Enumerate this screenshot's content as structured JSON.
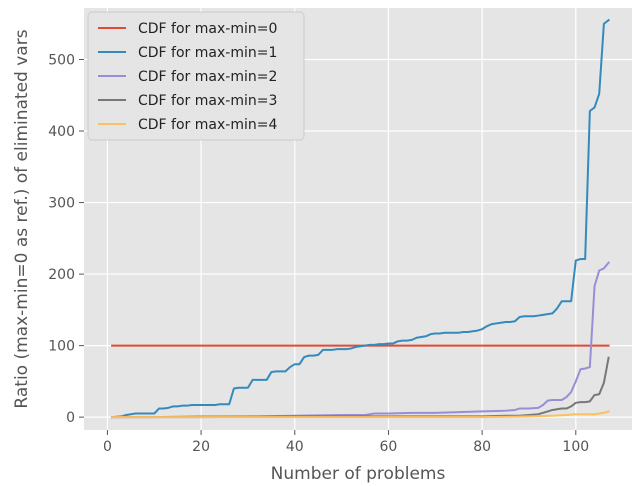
{
  "chart_data": {
    "type": "line",
    "xlabel": "Number of problems",
    "ylabel": "Ratio (max-min=0 as ref.) of eliminated vars",
    "xlim": [
      -5,
      112
    ],
    "ylim": [
      -18,
      572
    ],
    "xticks": [
      0,
      20,
      40,
      60,
      80,
      100
    ],
    "yticks": [
      0,
      100,
      200,
      300,
      400,
      500
    ],
    "grid": true,
    "legend_position": "upper-left",
    "series": [
      {
        "name": "CDF for max-min=0",
        "color": "#e24a33",
        "x": [
          1,
          107
        ],
        "y": [
          100,
          100
        ]
      },
      {
        "name": "CDF for max-min=1",
        "color": "#348abd",
        "x": [
          1,
          3,
          4,
          5,
          6,
          7,
          8,
          9,
          10,
          11,
          12,
          13,
          14,
          15,
          16,
          17,
          18,
          19,
          20,
          21,
          22,
          23,
          24,
          25,
          26,
          27,
          28,
          29,
          30,
          31,
          32,
          33,
          34,
          35,
          36,
          37,
          38,
          39,
          40,
          41,
          42,
          43,
          44,
          45,
          46,
          47,
          48,
          49,
          50,
          51,
          52,
          53,
          54,
          55,
          56,
          57,
          58,
          59,
          60,
          61,
          62,
          63,
          64,
          65,
          66,
          67,
          68,
          69,
          70,
          71,
          72,
          73,
          74,
          75,
          76,
          77,
          78,
          79,
          80,
          81,
          82,
          83,
          84,
          85,
          86,
          87,
          88,
          89,
          90,
          91,
          92,
          93,
          94,
          95,
          96,
          97,
          98,
          99,
          100,
          101,
          102,
          103,
          104,
          105,
          106,
          107
        ],
        "y": [
          0,
          1,
          3,
          4,
          5,
          5,
          5,
          5,
          5,
          12,
          12,
          13,
          15,
          15,
          16,
          16,
          17,
          17,
          17,
          17,
          17,
          17,
          18,
          18,
          18,
          40,
          41,
          41,
          41,
          52,
          52,
          52,
          52,
          63,
          64,
          64,
          64,
          70,
          74,
          74,
          84,
          86,
          86,
          87,
          94,
          94,
          94,
          95,
          95,
          95,
          96,
          98,
          99,
          100,
          101,
          101,
          102,
          102,
          103,
          103,
          106,
          107,
          107,
          108,
          111,
          112,
          113,
          116,
          117,
          117,
          118,
          118,
          118,
          118,
          119,
          119,
          120,
          121,
          123,
          127,
          130,
          131,
          132,
          133,
          133,
          134,
          140,
          141,
          141,
          141,
          142,
          143,
          144,
          145,
          152,
          162,
          162,
          162,
          219,
          221,
          221,
          428,
          433,
          452,
          550,
          555
        ]
      },
      {
        "name": "CDF for max-min=2",
        "color": "#988ed5",
        "x": [
          1,
          10,
          20,
          30,
          40,
          50,
          55,
          57,
          60,
          65,
          70,
          75,
          80,
          85,
          87,
          88,
          90,
          92,
          93,
          94,
          95,
          96,
          97,
          98,
          99,
          100,
          101,
          102,
          103,
          104,
          105,
          106,
          107
        ],
        "y": [
          0,
          0,
          1,
          1,
          2,
          3,
          3,
          5,
          5,
          6,
          6,
          7,
          8,
          9,
          10,
          12,
          12,
          13,
          17,
          23,
          24,
          24,
          24,
          28,
          35,
          50,
          67,
          68,
          70,
          183,
          205,
          208,
          216
        ]
      },
      {
        "name": "CDF for max-min=3",
        "color": "#777777",
        "x": [
          1,
          20,
          40,
          60,
          80,
          85,
          88,
          90,
          92,
          93,
          94,
          95,
          96,
          97,
          98,
          99,
          100,
          101,
          102,
          103,
          104,
          105,
          106,
          107
        ],
        "y": [
          0,
          0,
          1,
          1,
          1,
          2,
          2,
          3,
          4,
          6,
          8,
          10,
          11,
          12,
          12,
          15,
          20,
          21,
          21,
          22,
          31,
          32,
          48,
          83
        ]
      },
      {
        "name": "CDF for max-min=4",
        "color": "#fbc15e",
        "x": [
          1,
          40,
          60,
          80,
          90,
          95,
          98,
          100,
          102,
          104,
          105,
          106,
          107
        ],
        "y": [
          0,
          0,
          0,
          0,
          1,
          2,
          3,
          4,
          4,
          4,
          5,
          6,
          8
        ]
      }
    ]
  }
}
